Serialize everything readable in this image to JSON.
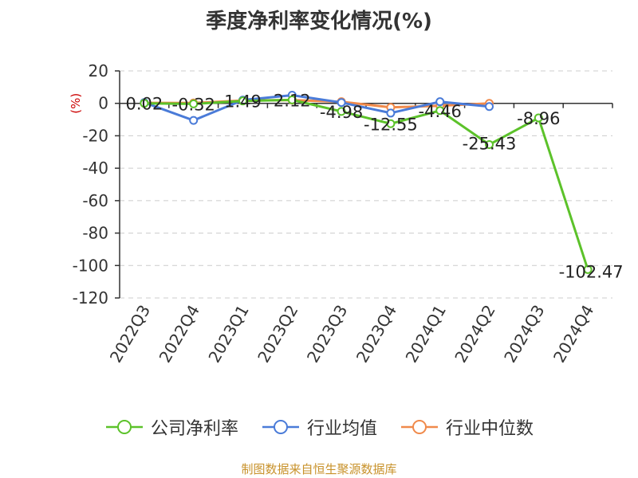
{
  "chart_data": {
    "type": "line",
    "title": "季度净利率变化情况(%)",
    "ylabel": "(%)",
    "xlabel": "",
    "ylim": [
      -120,
      20
    ],
    "yticks": [
      20,
      0,
      -20,
      -40,
      -60,
      -80,
      -100,
      -120
    ],
    "grid": true,
    "legend_position": "bottom",
    "categories": [
      "2022Q3",
      "2022Q4",
      "2023Q1",
      "2023Q2",
      "2023Q3",
      "2023Q4",
      "2024Q1",
      "2024Q2",
      "2024Q3",
      "2024Q4"
    ],
    "series": [
      {
        "name": "公司净利率",
        "color": "#5cc22a",
        "values": [
          0.02,
          -0.32,
          1.49,
          2.12,
          -4.98,
          -12.55,
          -4.46,
          -25.43,
          -8.96,
          -102.47
        ],
        "labels": [
          "0.02",
          "-0.32",
          "1.49",
          "2.12",
          "-4.98",
          "-12.55",
          "-4.46",
          "-25.43",
          "-8.96",
          "-102.47"
        ]
      },
      {
        "name": "行业均值",
        "color": "#4a7bd8",
        "values": [
          0.5,
          -10.5,
          2.0,
          5.0,
          0.5,
          -6.0,
          1.0,
          -2.0,
          null,
          null
        ]
      },
      {
        "name": "行业中位数",
        "color": "#f08a4b",
        "values": [
          0.3,
          0.2,
          1.8,
          2.0,
          1.0,
          -2.5,
          -1.5,
          0.0,
          null,
          null
        ]
      }
    ]
  },
  "footer": "制图数据来自恒生聚源数据库"
}
